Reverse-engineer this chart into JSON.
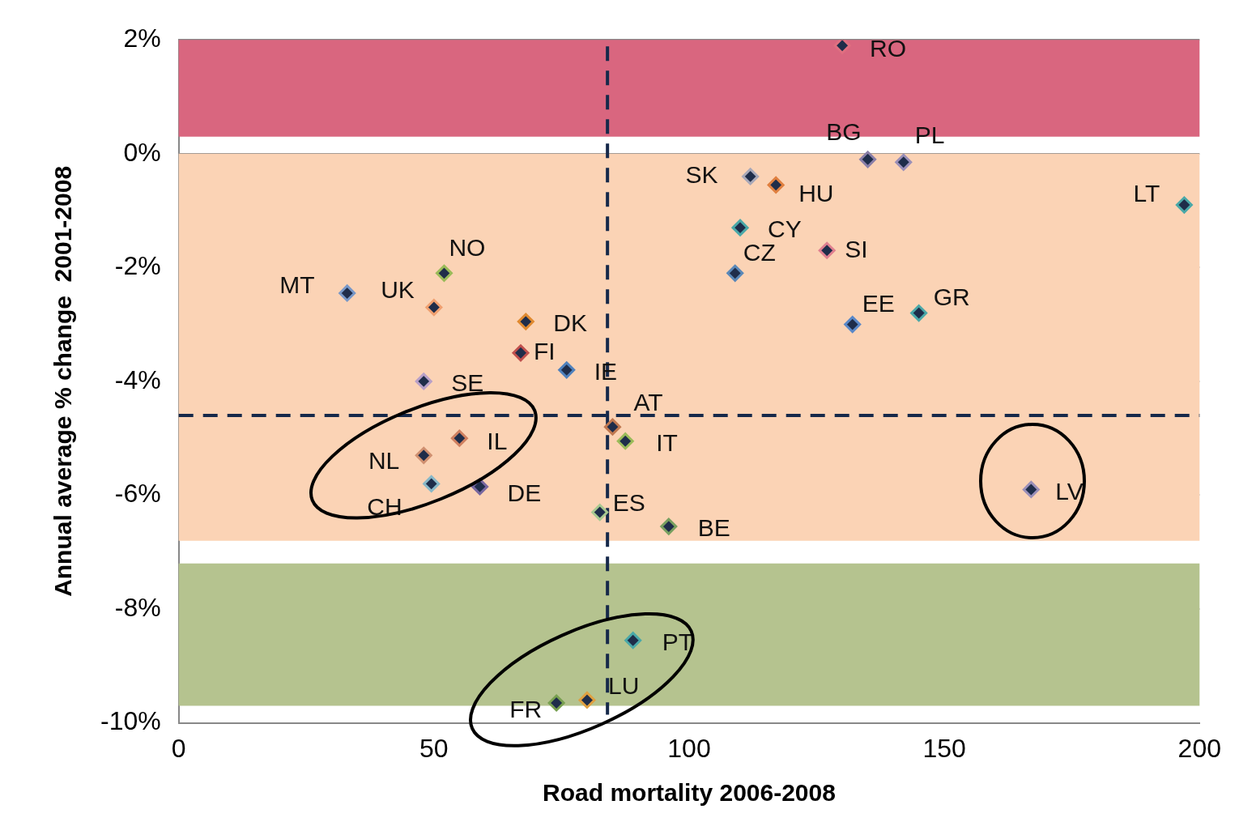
{
  "chart_data": {
    "type": "scatter",
    "xlabel": "Road mortality 2006-2008",
    "ylabel": "Annual average % change  2001-2008",
    "xlim": [
      0,
      200
    ],
    "ylim": [
      -10,
      2
    ],
    "xticks": [
      0,
      50,
      100,
      150,
      200
    ],
    "yticks": [
      {
        "value": 2,
        "label": "2%"
      },
      {
        "value": 0,
        "label": "0%"
      },
      {
        "value": -2,
        "label": "-2%"
      },
      {
        "value": -4,
        "label": "-4%"
      },
      {
        "value": -6,
        "label": "-6%"
      },
      {
        "value": -8,
        "label": "-8%"
      },
      {
        "value": -10,
        "label": "-10%"
      }
    ],
    "grid": "y",
    "legend": false,
    "marker": "diamond",
    "bands": [
      {
        "axis": "y",
        "from": 0.3,
        "to": 2,
        "color": "#d9667f"
      },
      {
        "axis": "y",
        "from": -6.8,
        "to": 0,
        "color": "#fbd3b5"
      },
      {
        "axis": "y",
        "from": -9.7,
        "to": -7.2,
        "color": "#b5c38f"
      }
    ],
    "ref_lines": [
      {
        "axis": "x",
        "value": 84,
        "color": "#16294a",
        "line_style": "dashed"
      },
      {
        "axis": "y",
        "value": -4.6,
        "color": "#16294a",
        "line_style": "dashed"
      }
    ],
    "series": [
      {
        "name": "RO",
        "color": "#e07080",
        "x": [
          130
        ],
        "values": [
          1.9
        ]
      },
      {
        "name": "BG",
        "color": "#8a7fa8",
        "x": [
          135
        ],
        "values": [
          -0.1
        ]
      },
      {
        "name": "PL",
        "color": "#9a8fb8",
        "x": [
          142
        ],
        "values": [
          -0.15
        ]
      },
      {
        "name": "SK",
        "color": "#a8a8b8",
        "x": [
          112
        ],
        "values": [
          -0.4
        ]
      },
      {
        "name": "HU",
        "color": "#e08040",
        "x": [
          117
        ],
        "values": [
          -0.55
        ]
      },
      {
        "name": "LT",
        "color": "#4aa8a8",
        "x": [
          197
        ],
        "values": [
          -0.9
        ]
      },
      {
        "name": "CY",
        "color": "#4aa8a8",
        "x": [
          110
        ],
        "values": [
          -1.3
        ]
      },
      {
        "name": "SI",
        "color": "#e08090",
        "x": [
          127
        ],
        "values": [
          -1.7
        ]
      },
      {
        "name": "CZ",
        "color": "#5a88b8",
        "x": [
          109
        ],
        "values": [
          -2.1
        ]
      },
      {
        "name": "EE",
        "color": "#5a88c8",
        "x": [
          132
        ],
        "values": [
          -3
        ]
      },
      {
        "name": "GR",
        "color": "#4aa8a8",
        "x": [
          145
        ],
        "values": [
          -2.8
        ]
      },
      {
        "name": "MT",
        "color": "#7898c8",
        "x": [
          33
        ],
        "values": [
          -2.45
        ]
      },
      {
        "name": "NO",
        "color": "#9abb59",
        "x": [
          52
        ],
        "values": [
          -2.1
        ]
      },
      {
        "name": "UK",
        "color": "#f0a070",
        "x": [
          50
        ],
        "values": [
          -2.7
        ]
      },
      {
        "name": "DK",
        "color": "#e08a30",
        "x": [
          68
        ],
        "values": [
          -2.95
        ]
      },
      {
        "name": "FI",
        "color": "#c0504d",
        "x": [
          67
        ],
        "values": [
          -3.5
        ]
      },
      {
        "name": "IE",
        "color": "#4f81bd",
        "x": [
          76
        ],
        "values": [
          -3.8
        ]
      },
      {
        "name": "SE",
        "color": "#b8a0c8",
        "x": [
          48
        ],
        "values": [
          -4
        ]
      },
      {
        "name": "AT",
        "color": "#c07850",
        "x": [
          85
        ],
        "values": [
          -4.8
        ]
      },
      {
        "name": "IT",
        "color": "#9abb59",
        "x": [
          87.5
        ],
        "values": [
          -5.05
        ]
      },
      {
        "name": "IL",
        "color": "#d08060",
        "x": [
          55
        ],
        "values": [
          -5
        ]
      },
      {
        "name": "NL",
        "color": "#d09070",
        "x": [
          48
        ],
        "values": [
          -5.3
        ]
      },
      {
        "name": "CH",
        "color": "#88b8c8",
        "x": [
          49.5
        ],
        "values": [
          -5.8
        ]
      },
      {
        "name": "DE",
        "color": "#7868a0",
        "x": [
          59
        ],
        "values": [
          -5.85
        ]
      },
      {
        "name": "ES",
        "color": "#a8c890",
        "x": [
          82.5
        ],
        "values": [
          -6.3
        ]
      },
      {
        "name": "BE",
        "color": "#78a060",
        "x": [
          96
        ],
        "values": [
          -6.55
        ]
      },
      {
        "name": "PT",
        "color": "#4aa8a8",
        "x": [
          89
        ],
        "values": [
          -8.55
        ]
      },
      {
        "name": "LU",
        "color": "#e0a040",
        "x": [
          80
        ],
        "values": [
          -9.6
        ]
      },
      {
        "name": "FR",
        "color": "#78a050",
        "x": [
          74
        ],
        "values": [
          -9.65
        ]
      },
      {
        "name": "LV",
        "color": "#9a8fb8",
        "x": [
          167
        ],
        "values": [
          -5.9
        ]
      }
    ]
  }
}
